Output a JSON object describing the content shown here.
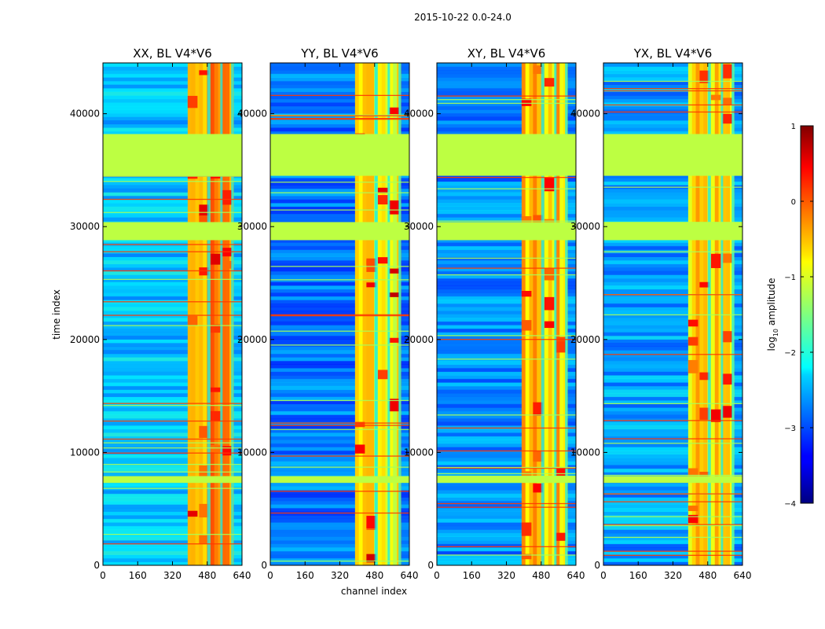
{
  "figure": {
    "suptitle": "2015-10-22 0.0-24.0",
    "xlabel": "channel index",
    "ylabel": "time index"
  },
  "chart_data": {
    "type": "heatmap",
    "colormap": "jet",
    "xlim": [
      0,
      640
    ],
    "ylim": [
      0,
      44500
    ],
    "x_ticks": [
      0,
      160,
      320,
      480,
      640
    ],
    "y_ticks": [
      0,
      10000,
      20000,
      30000,
      40000
    ],
    "x_tick_labels": [
      "0",
      "160",
      "320",
      "480",
      "640"
    ],
    "y_tick_labels": [
      "0",
      "10000",
      "20000",
      "30000",
      "40000"
    ],
    "panels": [
      {
        "title": "XX, BL V4*V6",
        "background_level": -2.4,
        "band_level": -0.4,
        "hot_level": 0.6
      },
      {
        "title": "YY, BL V4*V6",
        "background_level": -2.8,
        "band_level": -0.9,
        "hot_level": 0.7
      },
      {
        "title": "XY, BL V4*V6",
        "background_level": -2.7,
        "band_level": -0.6,
        "hot_level": 0.4
      },
      {
        "title": "YX, BL V4*V6",
        "background_level": -2.6,
        "band_level": -0.7,
        "hot_level": 0.5
      }
    ],
    "rfi_channel_range": [
      390,
      600
    ],
    "flagged_time_ranges": [
      [
        34500,
        38200
      ],
      [
        28800,
        30400
      ],
      [
        7300,
        7900
      ]
    ],
    "flagged_level": -1.2,
    "colorbar": {
      "label": "log",
      "label_subscript": "10",
      "label_suffix": " amplitude",
      "min": -4,
      "max": 1,
      "ticks": [
        1,
        0,
        -1,
        -2,
        -3,
        -4
      ],
      "tick_labels": [
        "1",
        "0",
        "−1",
        "−2",
        "−3",
        "−4"
      ]
    }
  }
}
